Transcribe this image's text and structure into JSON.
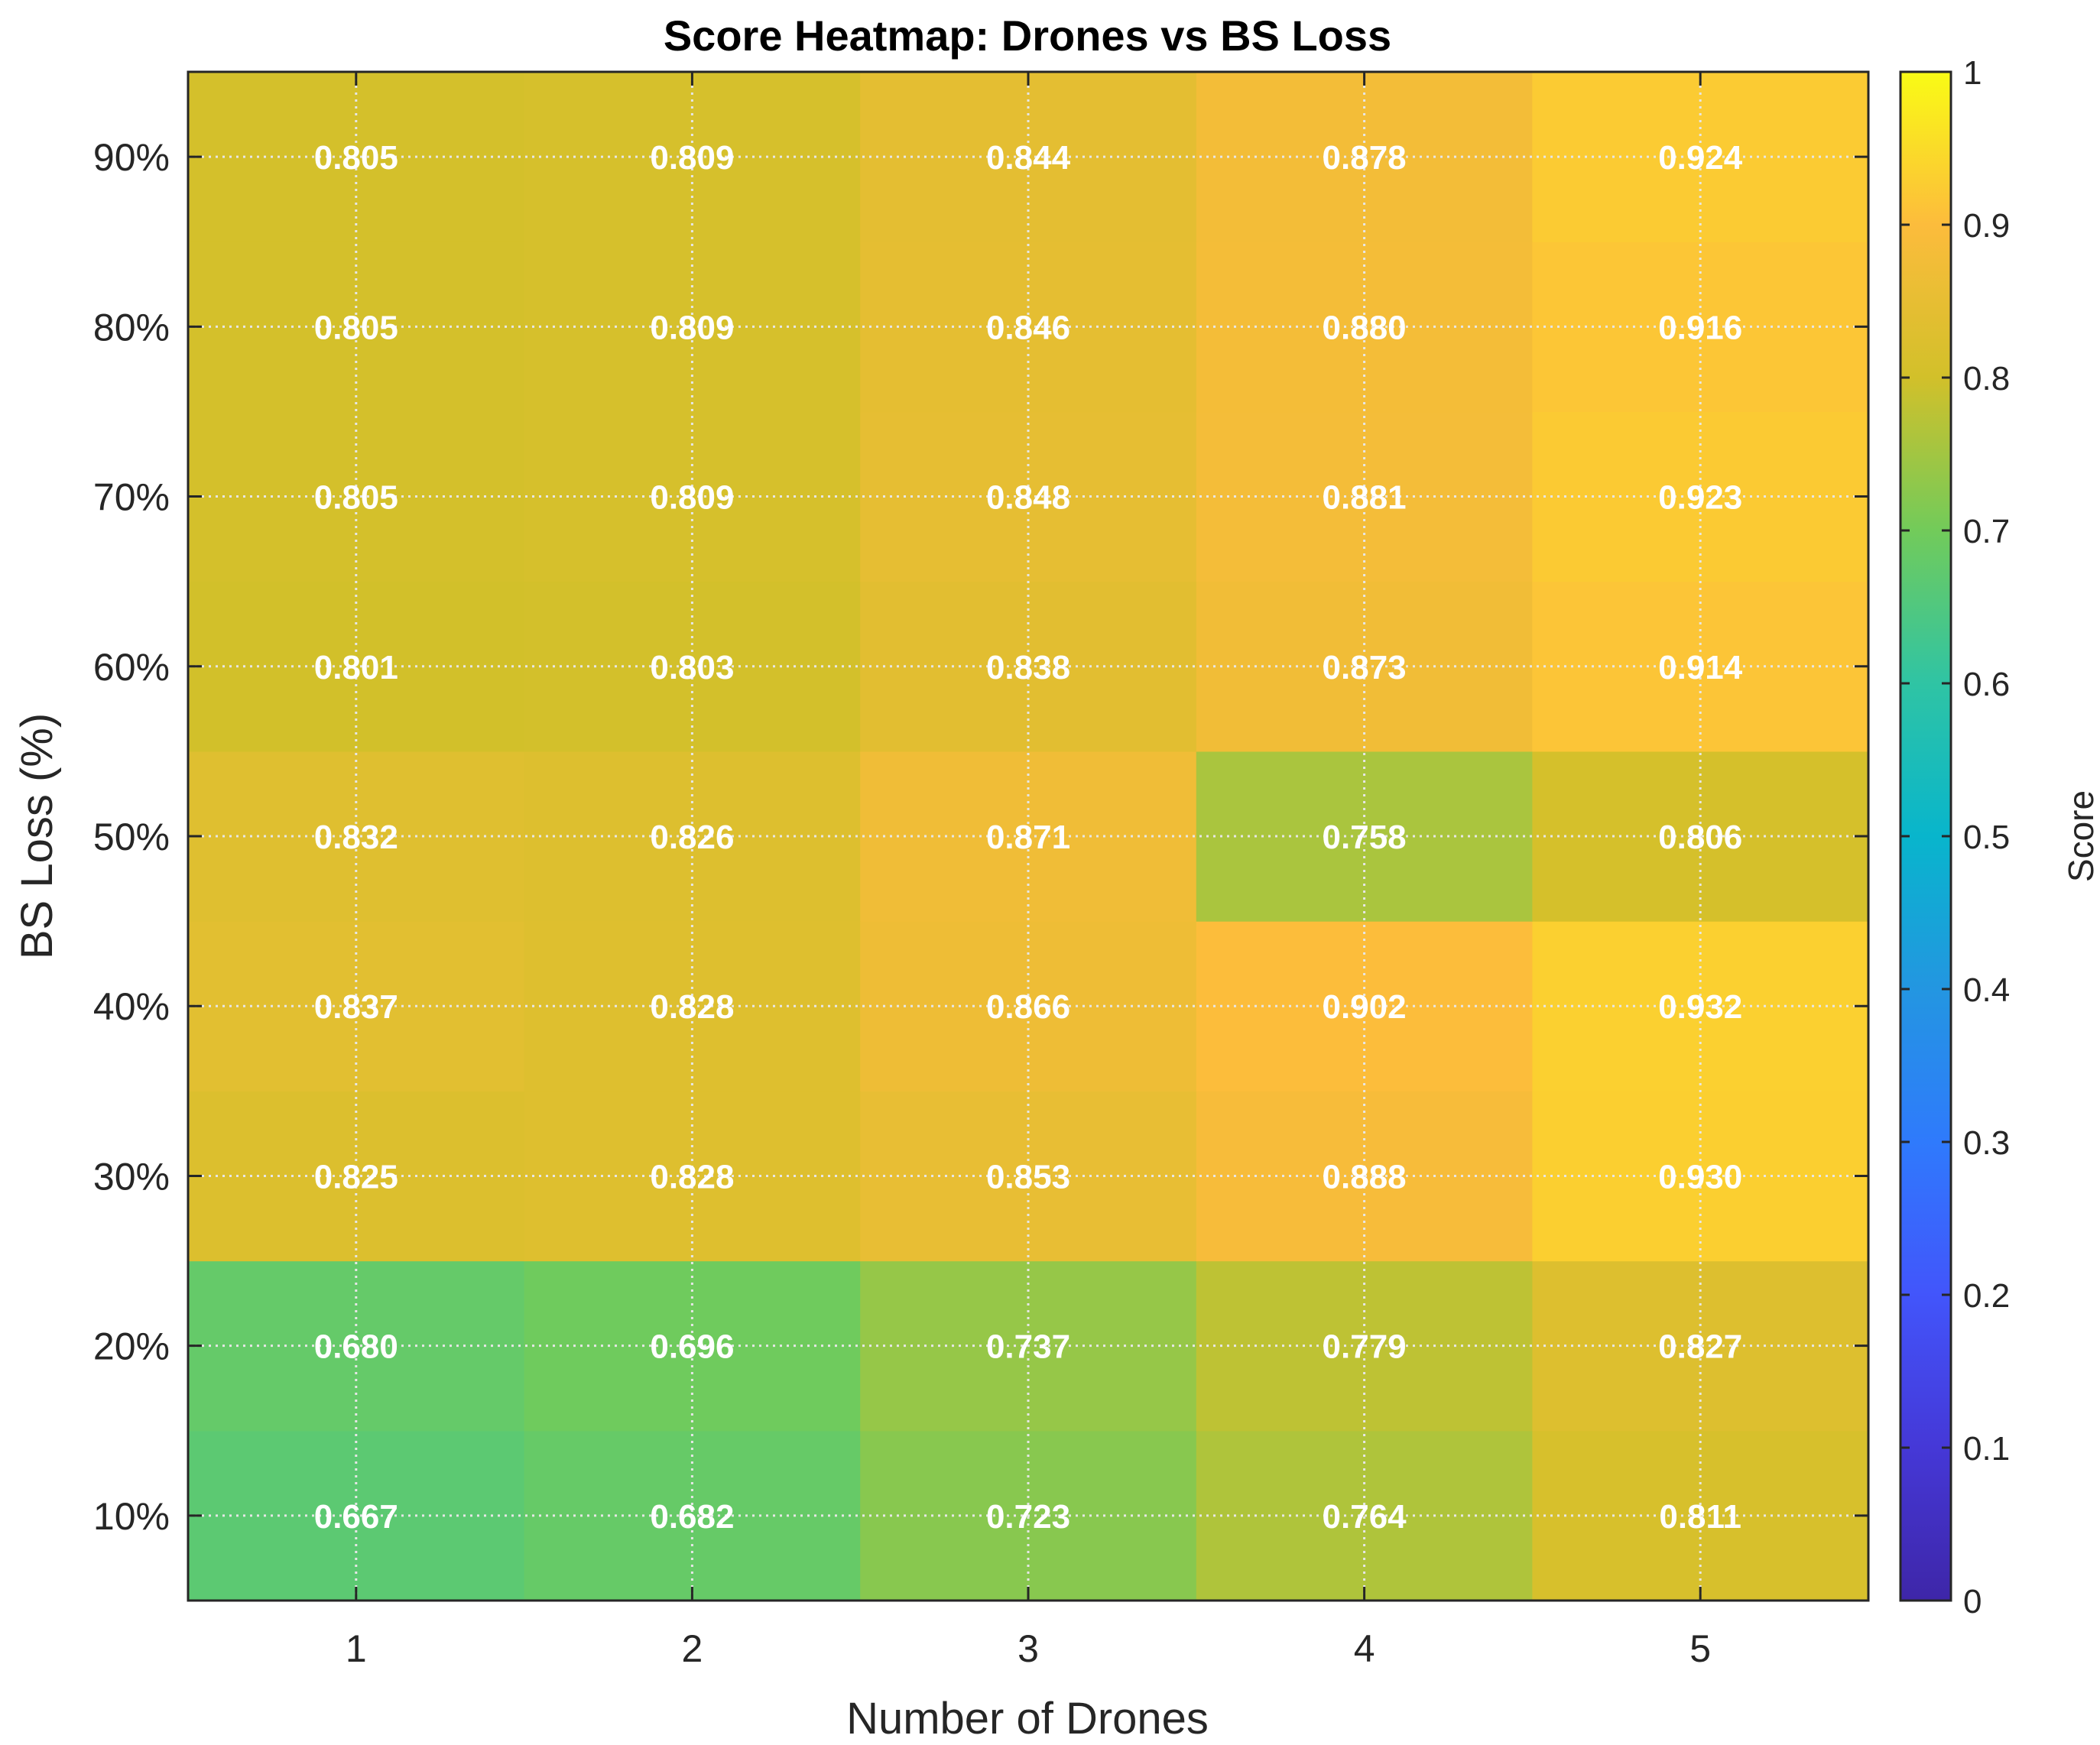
{
  "chart_data": {
    "type": "heatmap",
    "title": "Score Heatmap: Drones vs BS Loss",
    "xlabel": "Number of Drones",
    "ylabel": "BS Loss (%)",
    "colorbar_label": "Score",
    "x_categories": [
      "1",
      "2",
      "3",
      "4",
      "5"
    ],
    "y_categories": [
      "10%",
      "20%",
      "30%",
      "40%",
      "50%",
      "60%",
      "70%",
      "80%",
      "90%"
    ],
    "values": [
      [
        0.667,
        0.682,
        0.723,
        0.764,
        0.811
      ],
      [
        0.68,
        0.696,
        0.737,
        0.779,
        0.827
      ],
      [
        0.825,
        0.828,
        0.853,
        0.888,
        0.93
      ],
      [
        0.837,
        0.828,
        0.866,
        0.902,
        0.932
      ],
      [
        0.832,
        0.826,
        0.871,
        0.758,
        0.806
      ],
      [
        0.801,
        0.803,
        0.838,
        0.873,
        0.914
      ],
      [
        0.805,
        0.809,
        0.848,
        0.881,
        0.923
      ],
      [
        0.805,
        0.809,
        0.846,
        0.88,
        0.916
      ],
      [
        0.805,
        0.809,
        0.844,
        0.878,
        0.924
      ]
    ],
    "value_labels": [
      [
        "0.667",
        "0.682",
        "0.723",
        "0.764",
        "0.811"
      ],
      [
        "0.680",
        "0.696",
        "0.737",
        "0.779",
        "0.827"
      ],
      [
        "0.825",
        "0.828",
        "0.853",
        "0.888",
        "0.930"
      ],
      [
        "0.837",
        "0.828",
        "0.866",
        "0.902",
        "0.932"
      ],
      [
        "0.832",
        "0.826",
        "0.871",
        "0.758",
        "0.806"
      ],
      [
        "0.801",
        "0.803",
        "0.838",
        "0.873",
        "0.914"
      ],
      [
        "0.805",
        "0.809",
        "0.848",
        "0.881",
        "0.923"
      ],
      [
        "0.805",
        "0.809",
        "0.846",
        "0.880",
        "0.916"
      ],
      [
        "0.805",
        "0.809",
        "0.844",
        "0.878",
        "0.924"
      ]
    ],
    "colorbar_range": [
      0,
      1
    ],
    "colorbar_ticks": [
      "0",
      "0.1",
      "0.2",
      "0.3",
      "0.4",
      "0.5",
      "0.6",
      "0.7",
      "0.8",
      "0.9",
      "1"
    ],
    "colormap": "parula",
    "grid": true,
    "colors": {
      "grid": "#e6e6e6",
      "axis": "#262626",
      "cell_text": "#ffffff"
    }
  }
}
